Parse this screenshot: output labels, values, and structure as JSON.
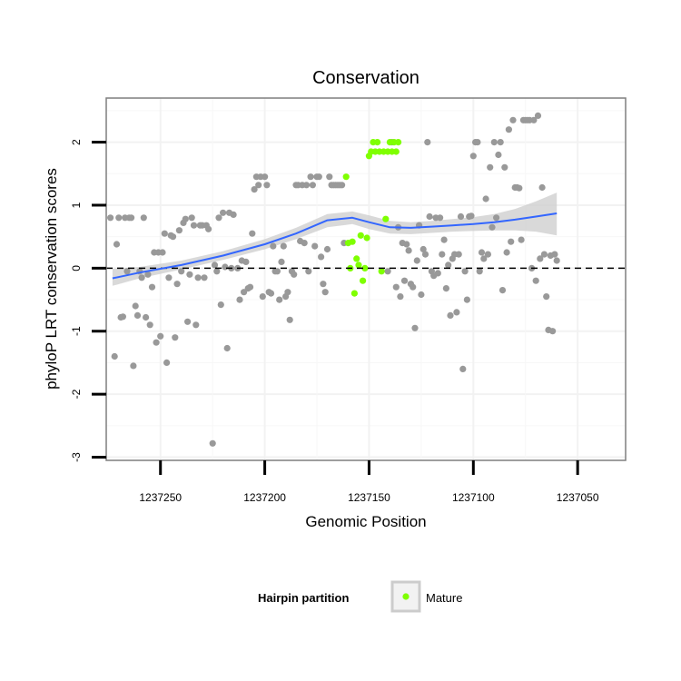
{
  "chart_data": {
    "type": "scatter",
    "title": "Conservation",
    "xlabel": "Genomic Position",
    "ylabel": "phyloP LRT conservation scores",
    "xlim": [
      1237276,
      1237027
    ],
    "ylim": [
      -3.05,
      2.7
    ],
    "x_reversed": true,
    "x_ticks": [
      1237250,
      1237200,
      1237150,
      1237100,
      1237050
    ],
    "x_tick_labels": [
      "1237250",
      "1237200",
      "1237150",
      "1237100",
      "1237050"
    ],
    "y_ticks": [
      -3,
      -2,
      -1,
      0,
      1,
      2
    ],
    "y_tick_labels": [
      "-3",
      "-2",
      "-1",
      "0",
      "1",
      "2"
    ],
    "reference_line": {
      "y": 0,
      "style": "dashed"
    },
    "legend": {
      "title": "Hairpin partition",
      "entries": [
        {
          "label": "Mature",
          "color": "#7fff00"
        }
      ],
      "position": "bottom"
    },
    "colors": {
      "other": "#999999",
      "mature": "#7fff00",
      "smooth": "#3366ff",
      "band": "#cccccc"
    },
    "series": [
      {
        "name": "Other",
        "points": [
          [
            1237274,
            0.8
          ],
          [
            1237272,
            -1.4
          ],
          [
            1237271,
            0.38
          ],
          [
            1237270,
            0.8
          ],
          [
            1237269,
            -0.78
          ],
          [
            1237268,
            -0.77
          ],
          [
            1237267,
            0.8
          ],
          [
            1237266,
            -0.05
          ],
          [
            1237265,
            0.8
          ],
          [
            1237264,
            0.8
          ],
          [
            1237263,
            -1.55
          ],
          [
            1237262,
            -0.6
          ],
          [
            1237261,
            -0.75
          ],
          [
            1237260,
            -0.05
          ],
          [
            1237259,
            -0.15
          ],
          [
            1237258,
            0.8
          ],
          [
            1237257,
            -0.78
          ],
          [
            1237256,
            -0.1
          ],
          [
            1237255,
            -0.9
          ],
          [
            1237254,
            -0.3
          ],
          [
            1237253,
            0.25
          ],
          [
            1237252,
            -1.18
          ],
          [
            1237251,
            0.25
          ],
          [
            1237250,
            -1.08
          ],
          [
            1237249,
            0.25
          ],
          [
            1237248,
            0.55
          ],
          [
            1237247,
            -1.5
          ],
          [
            1237246,
            -0.15
          ],
          [
            1237245,
            0.52
          ],
          [
            1237244,
            0.5
          ],
          [
            1237243,
            -1.1
          ],
          [
            1237242,
            -0.25
          ],
          [
            1237241,
            0.6
          ],
          [
            1237240,
            -0.05
          ],
          [
            1237239,
            0.72
          ],
          [
            1237238,
            0.78
          ],
          [
            1237237,
            -0.85
          ],
          [
            1237236,
            -0.1
          ],
          [
            1237235,
            0.8
          ],
          [
            1237234,
            0.68
          ],
          [
            1237233,
            -0.9
          ],
          [
            1237232,
            -0.15
          ],
          [
            1237231,
            0.68
          ],
          [
            1237230,
            0.68
          ],
          [
            1237229,
            -0.15
          ],
          [
            1237228,
            0.68
          ],
          [
            1237227,
            0.62
          ],
          [
            1237225,
            -2.78
          ],
          [
            1237224,
            0.05
          ],
          [
            1237223,
            -0.05
          ],
          [
            1237222,
            0.8
          ],
          [
            1237221,
            -0.58
          ],
          [
            1237220,
            0.88
          ],
          [
            1237219,
            0.02
          ],
          [
            1237218,
            -1.27
          ],
          [
            1237217,
            0.88
          ],
          [
            1237216,
            0.0
          ],
          [
            1237215,
            0.85
          ],
          [
            1237213,
            0.0
          ],
          [
            1237212,
            -0.5
          ],
          [
            1237211,
            0.12
          ],
          [
            1237210,
            -0.38
          ],
          [
            1237209,
            0.1
          ],
          [
            1237208,
            -0.32
          ],
          [
            1237207,
            -0.3
          ],
          [
            1237206,
            0.55
          ],
          [
            1237205,
            1.25
          ],
          [
            1237204,
            1.45
          ],
          [
            1237203,
            1.32
          ],
          [
            1237202,
            1.45
          ],
          [
            1237201,
            -0.45
          ],
          [
            1237200,
            1.45
          ],
          [
            1237199,
            1.32
          ],
          [
            1237198,
            -0.38
          ],
          [
            1237197,
            -0.4
          ],
          [
            1237196,
            0.35
          ],
          [
            1237195,
            -0.05
          ],
          [
            1237194,
            -0.05
          ],
          [
            1237193,
            -0.5
          ],
          [
            1237192,
            0.1
          ],
          [
            1237191,
            0.35
          ],
          [
            1237190,
            -0.45
          ],
          [
            1237189,
            -0.38
          ],
          [
            1237188,
            -0.82
          ],
          [
            1237187,
            -0.05
          ],
          [
            1237186,
            -0.1
          ],
          [
            1237185,
            1.32
          ],
          [
            1237184,
            1.32
          ],
          [
            1237183,
            0.43
          ],
          [
            1237182,
            1.32
          ],
          [
            1237181,
            0.4
          ],
          [
            1237180,
            1.32
          ],
          [
            1237179,
            -0.05
          ],
          [
            1237178,
            1.45
          ],
          [
            1237177,
            1.32
          ],
          [
            1237176,
            0.35
          ],
          [
            1237175,
            1.45
          ],
          [
            1237174,
            1.45
          ],
          [
            1237173,
            0.18
          ],
          [
            1237172,
            -0.25
          ],
          [
            1237171,
            -0.38
          ],
          [
            1237170,
            0.3
          ],
          [
            1237169,
            1.45
          ],
          [
            1237168,
            1.32
          ],
          [
            1237167,
            1.32
          ],
          [
            1237166,
            1.32
          ],
          [
            1237165,
            1.32
          ],
          [
            1237164,
            1.32
          ],
          [
            1237163,
            1.32
          ],
          [
            1237162,
            0.4
          ],
          [
            1237141,
            -0.05
          ],
          [
            1237139,
            2.0
          ],
          [
            1237137,
            -0.3
          ],
          [
            1237136,
            0.65
          ],
          [
            1237135,
            -0.45
          ],
          [
            1237134,
            0.4
          ],
          [
            1237133,
            -0.2
          ],
          [
            1237132,
            0.38
          ],
          [
            1237131,
            0.28
          ],
          [
            1237130,
            -0.25
          ],
          [
            1237129,
            -0.3
          ],
          [
            1237128,
            -0.95
          ],
          [
            1237127,
            0.12
          ],
          [
            1237126,
            0.68
          ],
          [
            1237125,
            -0.42
          ],
          [
            1237124,
            0.3
          ],
          [
            1237123,
            0.22
          ],
          [
            1237122,
            2.0
          ],
          [
            1237121,
            0.82
          ],
          [
            1237120,
            -0.05
          ],
          [
            1237119,
            -0.12
          ],
          [
            1237118,
            0.8
          ],
          [
            1237117,
            -0.08
          ],
          [
            1237116,
            0.8
          ],
          [
            1237115,
            0.22
          ],
          [
            1237114,
            0.45
          ],
          [
            1237113,
            -0.32
          ],
          [
            1237112,
            0.05
          ],
          [
            1237111,
            -0.75
          ],
          [
            1237110,
            0.15
          ],
          [
            1237109,
            0.22
          ],
          [
            1237108,
            -0.7
          ],
          [
            1237107,
            0.22
          ],
          [
            1237106,
            0.82
          ],
          [
            1237105,
            -1.6
          ],
          [
            1237104,
            -0.05
          ],
          [
            1237103,
            -0.5
          ],
          [
            1237102,
            0.82
          ],
          [
            1237101,
            0.83
          ],
          [
            1237100,
            1.78
          ],
          [
            1237099,
            2.0
          ],
          [
            1237098,
            2.0
          ],
          [
            1237097,
            -0.05
          ],
          [
            1237096,
            0.25
          ],
          [
            1237095,
            0.15
          ],
          [
            1237094,
            1.1
          ],
          [
            1237093,
            0.22
          ],
          [
            1237092,
            1.6
          ],
          [
            1237091,
            0.65
          ],
          [
            1237090,
            2.0
          ],
          [
            1237089,
            0.8
          ],
          [
            1237088,
            1.8
          ],
          [
            1237087,
            2.0
          ],
          [
            1237086,
            -0.35
          ],
          [
            1237085,
            1.6
          ],
          [
            1237084,
            0.25
          ],
          [
            1237083,
            2.2
          ],
          [
            1237082,
            0.42
          ],
          [
            1237081,
            2.35
          ],
          [
            1237080,
            1.28
          ],
          [
            1237079,
            1.28
          ],
          [
            1237078,
            1.27
          ],
          [
            1237077,
            0.45
          ],
          [
            1237076,
            2.35
          ],
          [
            1237075,
            2.35
          ],
          [
            1237074,
            2.35
          ],
          [
            1237073,
            2.35
          ],
          [
            1237072,
            0.0
          ],
          [
            1237071,
            2.35
          ],
          [
            1237070,
            -0.2
          ],
          [
            1237069,
            2.42
          ],
          [
            1237068,
            0.15
          ],
          [
            1237067,
            1.28
          ],
          [
            1237066,
            0.22
          ],
          [
            1237065,
            -0.45
          ],
          [
            1237064,
            -0.98
          ],
          [
            1237063,
            0.2
          ],
          [
            1237062,
            -1.0
          ],
          [
            1237061,
            0.22
          ],
          [
            1237060,
            0.12
          ]
        ]
      },
      {
        "name": "Mature",
        "points": [
          [
            1237161,
            1.45
          ],
          [
            1237160,
            0.4
          ],
          [
            1237159,
            0.0
          ],
          [
            1237158,
            0.42
          ],
          [
            1237157,
            -0.4
          ],
          [
            1237156,
            0.15
          ],
          [
            1237155,
            0.05
          ],
          [
            1237154,
            0.52
          ],
          [
            1237153,
            -0.2
          ],
          [
            1237152,
            0.0
          ],
          [
            1237151,
            0.48
          ],
          [
            1237150,
            1.78
          ],
          [
            1237149,
            1.85
          ],
          [
            1237148,
            2.0
          ],
          [
            1237147,
            1.85
          ],
          [
            1237146,
            2.0
          ],
          [
            1237145,
            1.85
          ],
          [
            1237144,
            -0.05
          ],
          [
            1237143,
            1.85
          ],
          [
            1237142,
            0.78
          ],
          [
            1237141,
            1.85
          ],
          [
            1237140,
            2.0
          ],
          [
            1237139,
            1.85
          ],
          [
            1237138,
            2.0
          ],
          [
            1237137,
            1.85
          ],
          [
            1237136,
            2.0
          ]
        ]
      }
    ],
    "smooth": {
      "method": "loess",
      "x": [
        1237273,
        1237260,
        1237240,
        1237220,
        1237200,
        1237185,
        1237170,
        1237158,
        1237150,
        1237140,
        1237130,
        1237120,
        1237110,
        1237100,
        1237090,
        1237080,
        1237070,
        1237060
      ],
      "y": [
        -0.16,
        -0.07,
        0.05,
        0.2,
        0.38,
        0.55,
        0.76,
        0.8,
        0.73,
        0.65,
        0.64,
        0.66,
        0.68,
        0.7,
        0.73,
        0.77,
        0.82,
        0.87
      ],
      "lower": [
        -0.28,
        -0.16,
        -0.02,
        0.13,
        0.3,
        0.46,
        0.65,
        0.7,
        0.62,
        0.55,
        0.54,
        0.56,
        0.58,
        0.59,
        0.6,
        0.6,
        0.58,
        0.52
      ],
      "upper": [
        -0.01,
        0.02,
        0.12,
        0.27,
        0.46,
        0.64,
        0.86,
        0.9,
        0.84,
        0.75,
        0.73,
        0.75,
        0.78,
        0.81,
        0.86,
        0.94,
        1.06,
        1.2
      ]
    }
  }
}
